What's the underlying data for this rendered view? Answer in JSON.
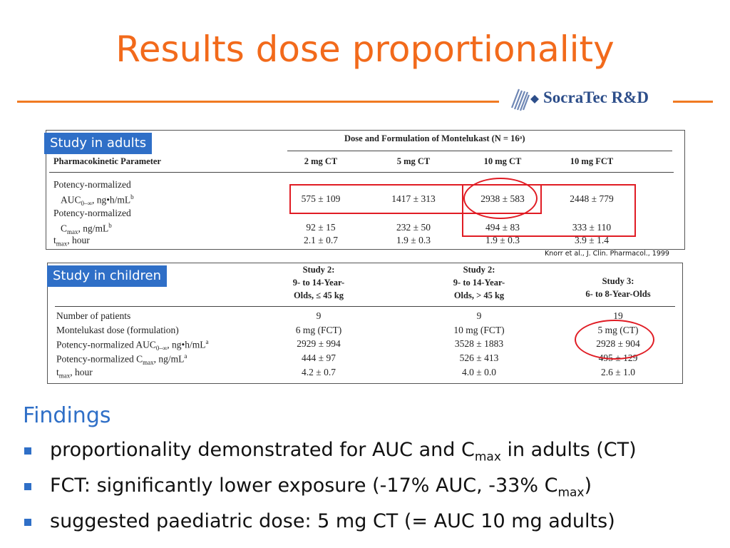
{
  "slide": {
    "title": "Results dose proportionality",
    "logo_text": "SocraTec R&D"
  },
  "adult_study": {
    "label": "Study in adults",
    "group_header": "Dose and Formulation of Montelukast (N = 16ᵃ)",
    "param_header": "Pharmacokinetic Parameter",
    "columns": [
      "2 mg CT",
      "5 mg CT",
      "10 mg CT",
      "10 mg FCT"
    ],
    "rows": [
      {
        "label_line1": "Potency-normalized",
        "label_main": "AUC",
        "label_sub": "0–∞",
        "label_rest": ", ng•h/mL",
        "label_sup": "b",
        "values": [
          "575 ± 109",
          "1417 ± 313",
          "2938 ± 583",
          "2448 ± 779"
        ]
      },
      {
        "label_line1": "Potency-normalized",
        "label_main": "C",
        "label_sub": "max",
        "label_rest": ", ng/mL",
        "label_sup": "b",
        "values": [
          "92 ± 15",
          "232 ± 50",
          "494 ± 83",
          "333 ± 110"
        ]
      },
      {
        "label_main": "t",
        "label_sub": "max",
        "label_rest": ", hour",
        "values": [
          "2.1 ± 0.7",
          "1.9 ± 0.3",
          "1.9 ± 0.3",
          "3.9 ± 1.4"
        ]
      }
    ],
    "reference": "Knorr et al., J. Clin. Pharmacol., 1999"
  },
  "child_study": {
    "label": "Study in children",
    "columns": [
      {
        "line1": "Study 2:",
        "line2": "9- to 14-Year-",
        "line3": "Olds, ≤ 45 kg"
      },
      {
        "line1": "Study 2:",
        "line2": "9- to 14-Year-",
        "line3": "Olds, > 45 kg"
      },
      {
        "line1": "",
        "line2": "Study 3:",
        "line3": "6- to 8-Year-Olds"
      }
    ],
    "rows": [
      {
        "label_main": "Number of patients",
        "values": [
          "9",
          "9",
          "19"
        ]
      },
      {
        "label_main": "Montelukast dose (formulation)",
        "values": [
          "6 mg (FCT)",
          "10 mg (FCT)",
          "5 mg (CT)"
        ]
      },
      {
        "label_main": "Potency-normalized AUC",
        "label_sub": "0–∞",
        "label_rest": ", ng•h/mL",
        "label_sup": "a",
        "values": [
          "2929 ± 994",
          "3528 ± 1883",
          "2928 ± 904"
        ]
      },
      {
        "label_main": "Potency-normalized C",
        "label_sub": "max",
        "label_rest": ", ng/mL",
        "label_sup": "a",
        "values": [
          "444 ± 97",
          "526 ± 413",
          "495 ± 129"
        ]
      },
      {
        "label_main": "t",
        "label_sub": "max",
        "label_rest": ", hour",
        "values": [
          "4.2 ± 0.7",
          "4.0 ± 0.0",
          "2.6 ± 1.0"
        ]
      }
    ]
  },
  "findings": {
    "heading": "Findings",
    "bullets": [
      {
        "text": "proportionality demonstrated for AUC and C",
        "sub": "max",
        "tail": " in adults (CT)"
      },
      {
        "text": "FCT: significantly lower exposure (-17% AUC, -33% C",
        "sub": "max",
        "tail": ")"
      },
      {
        "text": "suggested paediatric dose: 5 mg CT (= AUC 10 mg adults)",
        "sub": "",
        "tail": ""
      }
    ]
  },
  "colors": {
    "title": "#f26a1b",
    "accent_blue": "#2f6fc7",
    "highlight_red": "#e01c24",
    "rule_orange": "#f07a22"
  }
}
